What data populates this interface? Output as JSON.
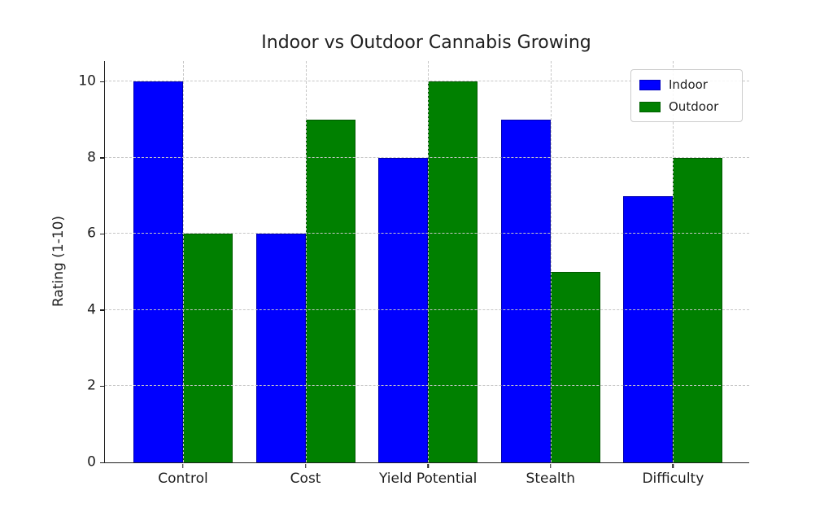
{
  "chart_data": {
    "type": "bar",
    "title": "Indoor vs Outdoor Cannabis Growing",
    "categories": [
      "Control",
      "Cost",
      "Yield Potential",
      "Stealth",
      "Difficulty"
    ],
    "series": [
      {
        "name": "Indoor",
        "color": "#0000ff",
        "values": [
          10,
          6,
          8,
          9,
          7
        ]
      },
      {
        "name": "Outdoor",
        "color": "#008000",
        "values": [
          6,
          9,
          10,
          5,
          8
        ]
      }
    ],
    "xlabel": "",
    "ylabel": "Rating (1-10)",
    "ylim": [
      0,
      10.54
    ],
    "yticks": [
      0,
      2,
      4,
      6,
      8,
      10
    ],
    "grid": true,
    "grid_style": "dashed",
    "grid_color": "#c6c6c6",
    "legend_position": "upper right",
    "background_color": "#ffffff",
    "text_color": "#1f1f1f"
  }
}
